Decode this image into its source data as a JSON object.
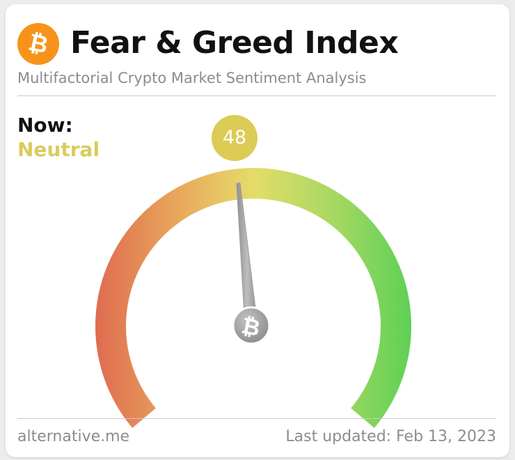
{
  "header": {
    "title": "Fear & Greed Index",
    "subtitle": "Multifactorial Crypto Market Sentiment Analysis",
    "logo_icon": "bitcoin-icon",
    "logo_color": "#f7931a"
  },
  "current": {
    "now_label": "Now:",
    "status": "Neutral",
    "value": "48",
    "status_color": "#d9cc5c"
  },
  "gauge": {
    "min": 0,
    "max": 100,
    "value": 48,
    "colors": [
      "#df6c50",
      "#e8a55c",
      "#e6dc68",
      "#a8d862",
      "#5ed156"
    ],
    "needle_color": "#a8a8a8",
    "hub_icon": "bitcoin-icon"
  },
  "footer": {
    "source": "alternative.me",
    "last_updated": "Last updated: Feb 13, 2023"
  }
}
